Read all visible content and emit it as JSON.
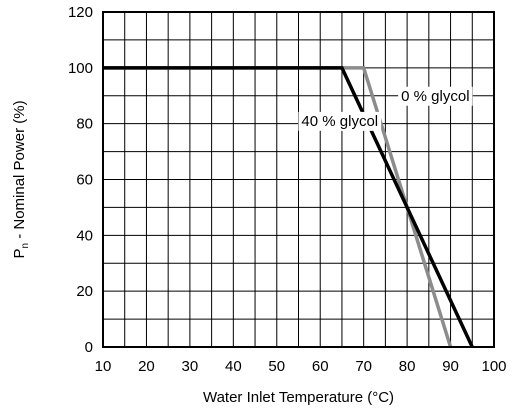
{
  "chart_data": {
    "type": "line",
    "xlabel": "Water Inlet Temperature (°C)",
    "ylabel_main": "P",
    "ylabel_sub": "n",
    "ylabel_rest": " - Nominal Power (%)",
    "xlim": [
      10,
      100
    ],
    "ylim": [
      0,
      120
    ],
    "x_ticks": [
      10,
      20,
      30,
      40,
      50,
      60,
      70,
      80,
      90,
      100
    ],
    "y_ticks": [
      0,
      20,
      40,
      60,
      80,
      100,
      120
    ],
    "grid": true,
    "series": [
      {
        "name": "0 % glycol",
        "color": "#8c8c8c",
        "points": [
          [
            10,
            100
          ],
          [
            70,
            100
          ],
          [
            90,
            0
          ]
        ]
      },
      {
        "name": "40 % glycol",
        "color": "#000000",
        "points": [
          [
            10,
            100
          ],
          [
            65,
            100
          ],
          [
            95,
            0
          ]
        ]
      }
    ],
    "annotations": [
      {
        "text": "0 % glycol",
        "x": 86.5,
        "y": 90
      },
      {
        "text": "40 % glycol",
        "x": 64.5,
        "y": 81
      }
    ]
  }
}
